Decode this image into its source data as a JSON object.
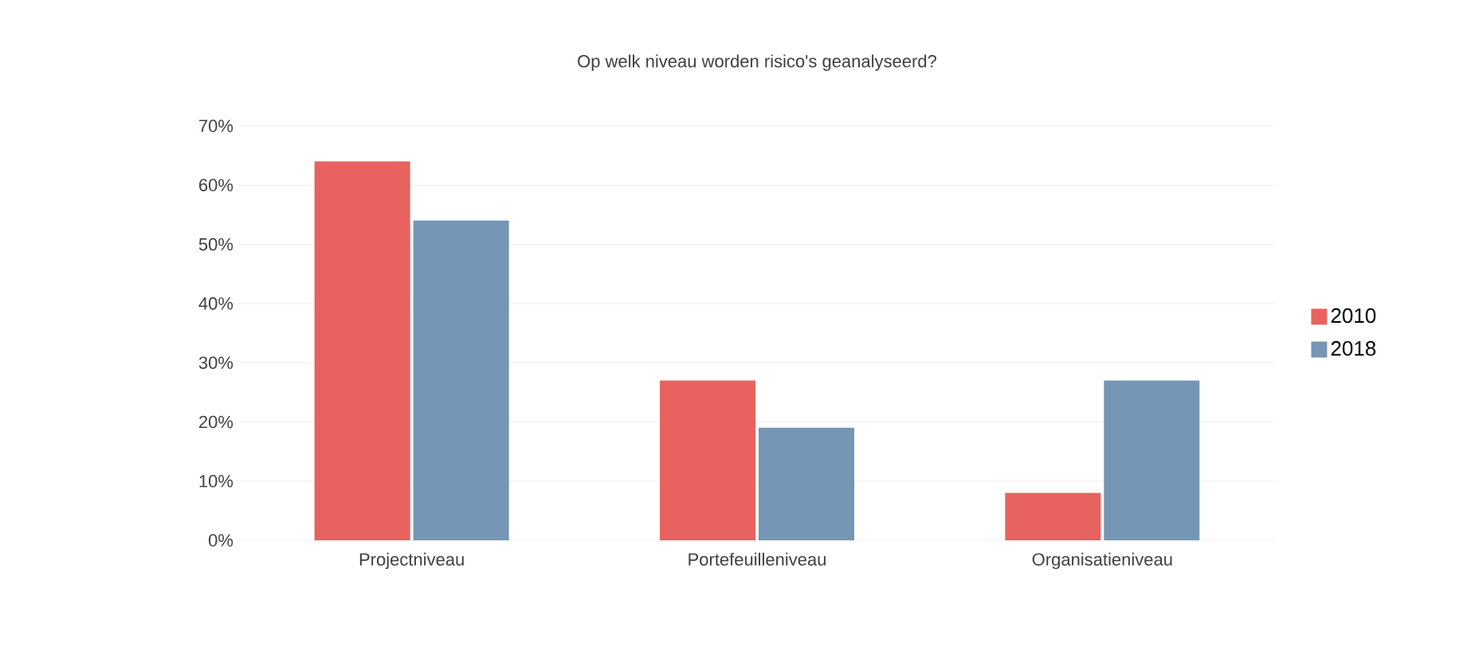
{
  "chart_data": {
    "type": "bar",
    "title": "Op welk niveau worden risico's geanalyseerd?",
    "categories": [
      "Projectniveau",
      "Portefeuilleniveau",
      "Organisatieniveau"
    ],
    "series": [
      {
        "name": "2010",
        "color": "#e8625f",
        "values": [
          64,
          27,
          8
        ]
      },
      {
        "name": "2018",
        "color": "#7596b5",
        "values": [
          54,
          19,
          27
        ]
      }
    ],
    "ylim": [
      0,
      70
    ],
    "yticks": [
      {
        "value": 0,
        "label": "0%"
      },
      {
        "value": 10,
        "label": "10%"
      },
      {
        "value": 20,
        "label": "20%"
      },
      {
        "value": 30,
        "label": "30%"
      },
      {
        "value": 40,
        "label": "40%"
      },
      {
        "value": 50,
        "label": "50%"
      },
      {
        "value": 60,
        "label": "60%"
      },
      {
        "value": 70,
        "label": "70%"
      }
    ],
    "grid": "y",
    "legend": "right"
  }
}
